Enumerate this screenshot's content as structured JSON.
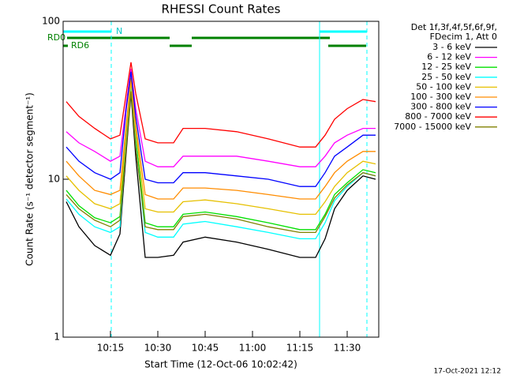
{
  "chart_data": {
    "type": "line",
    "title": "RHESSI Count Rates",
    "xlabel": "Start Time (12-Oct-06 10:02:42)",
    "ylabel": "Count Rate (s⁻¹ detector segment⁻¹)",
    "legend_header": [
      "Det 1f,3f,4f,5f,6f,9f,",
      "FDecim 1, Att 0"
    ],
    "flags": [
      "N",
      "RD0",
      "RD6"
    ],
    "footer": "17-Oct-2021 12:12",
    "log_y": true,
    "xlim": [
      0,
      100
    ],
    "ylim": [
      1,
      100
    ],
    "xticks": [
      {
        "value": 15,
        "label": "10:15"
      },
      {
        "value": 30,
        "label": "10:30"
      },
      {
        "value": 45,
        "label": "10:45"
      },
      {
        "value": 60,
        "label": "11:00"
      },
      {
        "value": 75,
        "label": "11:15"
      },
      {
        "value": 90,
        "label": "11:30"
      }
    ],
    "yticks": [
      1,
      10,
      100
    ],
    "x": [
      1,
      5,
      10,
      15,
      18,
      20,
      21.5,
      23,
      26,
      30,
      35,
      38,
      45,
      55,
      65,
      75,
      80,
      83,
      86,
      90,
      95,
      99
    ],
    "series": [
      {
        "name": "3 - 6 keV",
        "color": "#000000",
        "values": [
          7.2,
          5,
          3.8,
          3.3,
          4.5,
          15,
          35,
          14,
          3.2,
          3.2,
          3.3,
          4,
          4.3,
          4,
          3.6,
          3.2,
          3.2,
          4.2,
          6.5,
          8.5,
          10.5,
          10
        ]
      },
      {
        "name": "6 - 12 keV",
        "color": "#ff00ff",
        "values": [
          20,
          17,
          15,
          13,
          14,
          30,
          50,
          28,
          13,
          12,
          12,
          14,
          14,
          14,
          13,
          12,
          12,
          14,
          17,
          19,
          21,
          21
        ]
      },
      {
        "name": "12 - 25 keV",
        "color": "#00e000",
        "values": [
          8.5,
          6.8,
          5.7,
          5.3,
          5.8,
          18,
          40,
          18,
          5.3,
          5,
          5,
          6,
          6.2,
          5.8,
          5.3,
          4.8,
          4.8,
          6,
          8,
          9.5,
          11.5,
          11
        ]
      },
      {
        "name": "25 - 50 keV",
        "color": "#00ffff",
        "values": [
          7.5,
          6,
          5,
          4.6,
          5,
          17,
          38,
          17,
          4.6,
          4.3,
          4.3,
          5.2,
          5.4,
          5,
          4.6,
          4.2,
          4.2,
          5.3,
          7.3,
          9,
          11,
          10.5
        ]
      },
      {
        "name": "50 - 100 keV",
        "color": "#e6c000",
        "values": [
          10.5,
          8.5,
          7,
          6.5,
          7,
          20,
          42,
          20,
          6.5,
          6.2,
          6.2,
          7.2,
          7.4,
          7,
          6.5,
          6,
          6,
          7.2,
          9,
          11,
          13,
          12.5
        ]
      },
      {
        "name": "100 - 300 keV",
        "color": "#ff8c00",
        "values": [
          13,
          10.5,
          8.5,
          8,
          8.5,
          22,
          44,
          22,
          8,
          7.5,
          7.5,
          8.8,
          8.8,
          8.5,
          8,
          7.5,
          7.5,
          9,
          11,
          13,
          15,
          15
        ]
      },
      {
        "name": "300 - 800 keV",
        "color": "#0000ff",
        "values": [
          16,
          13,
          11,
          10,
          11,
          28,
          48,
          25,
          10,
          9.5,
          9.5,
          11,
          11,
          10.5,
          10,
          9,
          9,
          11,
          14,
          16,
          19,
          19
        ]
      },
      {
        "name": "800 - 7000 keV",
        "color": "#ff0000",
        "values": [
          31,
          25,
          21,
          18,
          19,
          35,
          55,
          35,
          18,
          17,
          17,
          21,
          21,
          20,
          18,
          16,
          16,
          19,
          24,
          28,
          32,
          31
        ]
      },
      {
        "name": "7000 - 15000 keV",
        "color": "#808000",
        "values": [
          8,
          6.5,
          5.5,
          5,
          5.5,
          16,
          36,
          16,
          5,
          4.8,
          4.8,
          5.8,
          6,
          5.6,
          5,
          4.6,
          4.6,
          5.8,
          7.6,
          9.2,
          11,
          10.5
        ]
      }
    ]
  }
}
